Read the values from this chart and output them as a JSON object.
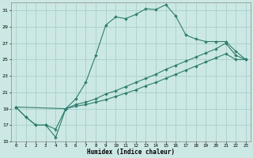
{
  "xlabel": "Humidex (Indice chaleur)",
  "line_color": "#2e7d6e",
  "bg_color": "#cce8e4",
  "grid_color": "#a8d0cc",
  "xlim": [
    -0.5,
    23.5
  ],
  "ylim": [
    15,
    32
  ],
  "yticks": [
    15,
    17,
    19,
    21,
    23,
    25,
    27,
    29,
    31
  ],
  "xticks": [
    0,
    1,
    2,
    3,
    4,
    5,
    6,
    7,
    8,
    9,
    10,
    11,
    12,
    13,
    14,
    15,
    16,
    17,
    18,
    19,
    20,
    21,
    22,
    23
  ],
  "lines": [
    {
      "x": [
        0,
        1,
        2,
        3,
        4,
        5,
        6,
        7,
        8,
        9,
        10,
        11,
        12,
        13,
        14,
        15,
        16,
        17,
        18,
        19,
        20,
        21,
        22,
        23
      ],
      "y": [
        19.2,
        18.0,
        17.0,
        17.0,
        15.5,
        19.0,
        20.2,
        22.2,
        25.5,
        29.2,
        30.2,
        30.0,
        30.5,
        31.2,
        31.1,
        31.7,
        30.3,
        28.0,
        27.5,
        27.2,
        27.2,
        27.2,
        26.0,
        25.0
      ]
    },
    {
      "x": [
        0,
        1,
        2,
        3,
        4,
        5,
        6,
        7,
        8,
        9,
        10,
        11,
        12,
        13,
        14,
        15,
        16,
        17,
        18,
        19,
        20,
        21,
        22,
        23
      ],
      "y": [
        19.2,
        18.0,
        17.0,
        17.0,
        16.5,
        19.0,
        19.5,
        19.8,
        20.2,
        20.8,
        21.2,
        21.7,
        22.2,
        22.7,
        23.2,
        23.8,
        24.3,
        24.8,
        25.3,
        25.8,
        26.3,
        27.0,
        25.5,
        25.0
      ]
    },
    {
      "x": [
        0,
        5,
        6,
        7,
        8,
        9,
        10,
        11,
        12,
        13,
        14,
        15,
        16,
        17,
        18,
        19,
        20,
        21,
        22,
        23
      ],
      "y": [
        19.2,
        19.0,
        19.3,
        19.5,
        19.8,
        20.1,
        20.5,
        20.9,
        21.3,
        21.8,
        22.2,
        22.7,
        23.2,
        23.7,
        24.2,
        24.7,
        25.2,
        25.7,
        25.0,
        25.0
      ]
    }
  ]
}
